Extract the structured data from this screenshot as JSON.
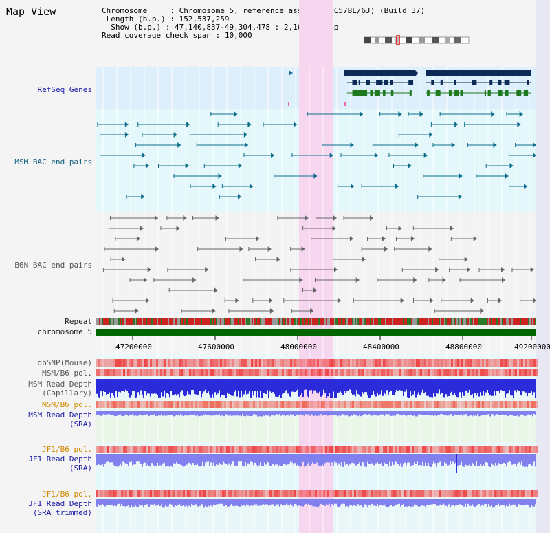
{
  "title": "Map View",
  "info": {
    "chromosome_label": "Chromosome",
    "chromosome_value": "Chromosome 5, reference assembly (C57BL/6J) (Build 37)",
    "length_label": "Length (b.p.)",
    "length_value": "152,537,259",
    "show_label": "Show (b.p.)",
    "show_value": "47,140,837-49,304,478 : 2,163,642 bp",
    "coverage_label": "Read coverage check span",
    "coverage_value": "10,000"
  },
  "tracks": {
    "refseq": "RefSeq Genes",
    "msm_bac": "MSM BAC end pairs",
    "b6n_bac": "B6N BAC end pairs",
    "repeat": "Repeat",
    "chromosome": "chromosome 5",
    "dbsnp": "dbSNP(Mouse)",
    "msm_b6_pol_1": "MSM/B6 pol.",
    "msm_depth_cap_1": "MSM Read Depth",
    "msm_depth_cap_2": "(Capillary)",
    "msm_b6_pol_2": "MSM/B6 pol.",
    "msm_depth_sra_1": "MSM Read Depth",
    "msm_depth_sra_2": "(SRA)",
    "jf1_b6_pol_1": "JF1/B6 pol.",
    "jf1_depth_sra_1": "JF1 Read Depth",
    "jf1_depth_sra_2": "(SRA)",
    "jf1_b6_pol_2": "JF1/B6 pol.",
    "jf1_depth_trim_1": "JF1 Read Depth",
    "jf1_depth_trim_2": "(SRA trimmed)"
  },
  "axis_ticks": [
    "47200000",
    "47600000",
    "48000000",
    "48400000",
    "48800000",
    "49200000"
  ],
  "colors": {
    "refseq_bg": "#dceffa",
    "msm_bg": "#e4f7fa",
    "b6n_bg": "#f3f3f3",
    "highlight": "#f7d6ef",
    "gene_dark": "#0c2a55",
    "gene_green": "#1f7a1f",
    "msm_feature": "#0d6e8c",
    "b6n_feature": "#666666",
    "chromosome_bar": "#006600",
    "depth_blue": "#2b2bd9",
    "depth_light": "#8080ee",
    "snp_red": "#ee4444"
  }
}
